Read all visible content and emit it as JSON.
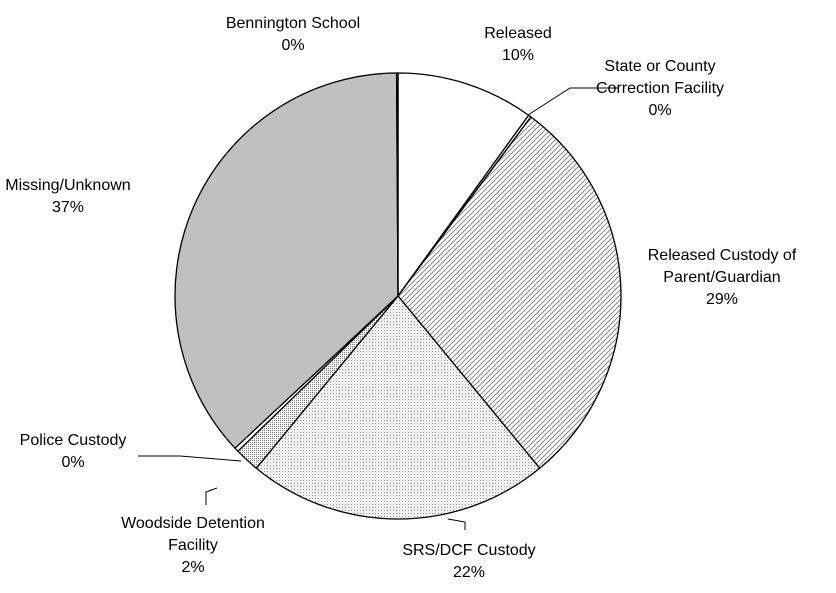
{
  "chart_data": {
    "type": "pie",
    "title": "",
    "slices": [
      {
        "label_lines": [
          "Released"
        ],
        "value": 10,
        "value_label": "10%",
        "fill": "white"
      },
      {
        "label_lines": [
          "State or County",
          "Correction Facility"
        ],
        "value": 0.2,
        "value_label": "0%",
        "fill": "white"
      },
      {
        "label_lines": [
          "Released Custody of",
          "Parent/Guardian"
        ],
        "value": 29,
        "value_label": "29%",
        "fill": "diagonal-hatch"
      },
      {
        "label_lines": [
          "SRS/DCF Custody"
        ],
        "value": 22,
        "value_label": "22%",
        "fill": "light-dots"
      },
      {
        "label_lines": [
          "Woodside Detention",
          "Facility"
        ],
        "value": 1.8,
        "value_label": "2%",
        "fill": "dense-dots"
      },
      {
        "label_lines": [
          "Police Custody"
        ],
        "value": 0.3,
        "value_label": "0%",
        "fill": "white"
      },
      {
        "label_lines": [
          "Missing/Unknown"
        ],
        "value": 37,
        "value_label": "37%",
        "fill": "gray"
      },
      {
        "label_lines": [
          "Bennington School"
        ],
        "value": 0.1,
        "value_label": "0%",
        "fill": "white"
      }
    ],
    "start_angle_deg": 0,
    "direction": "clockwise",
    "colors": {
      "gray": "#c0c0c0",
      "stroke": "#000000",
      "hatch": "#808080",
      "dots": "#909090"
    }
  }
}
